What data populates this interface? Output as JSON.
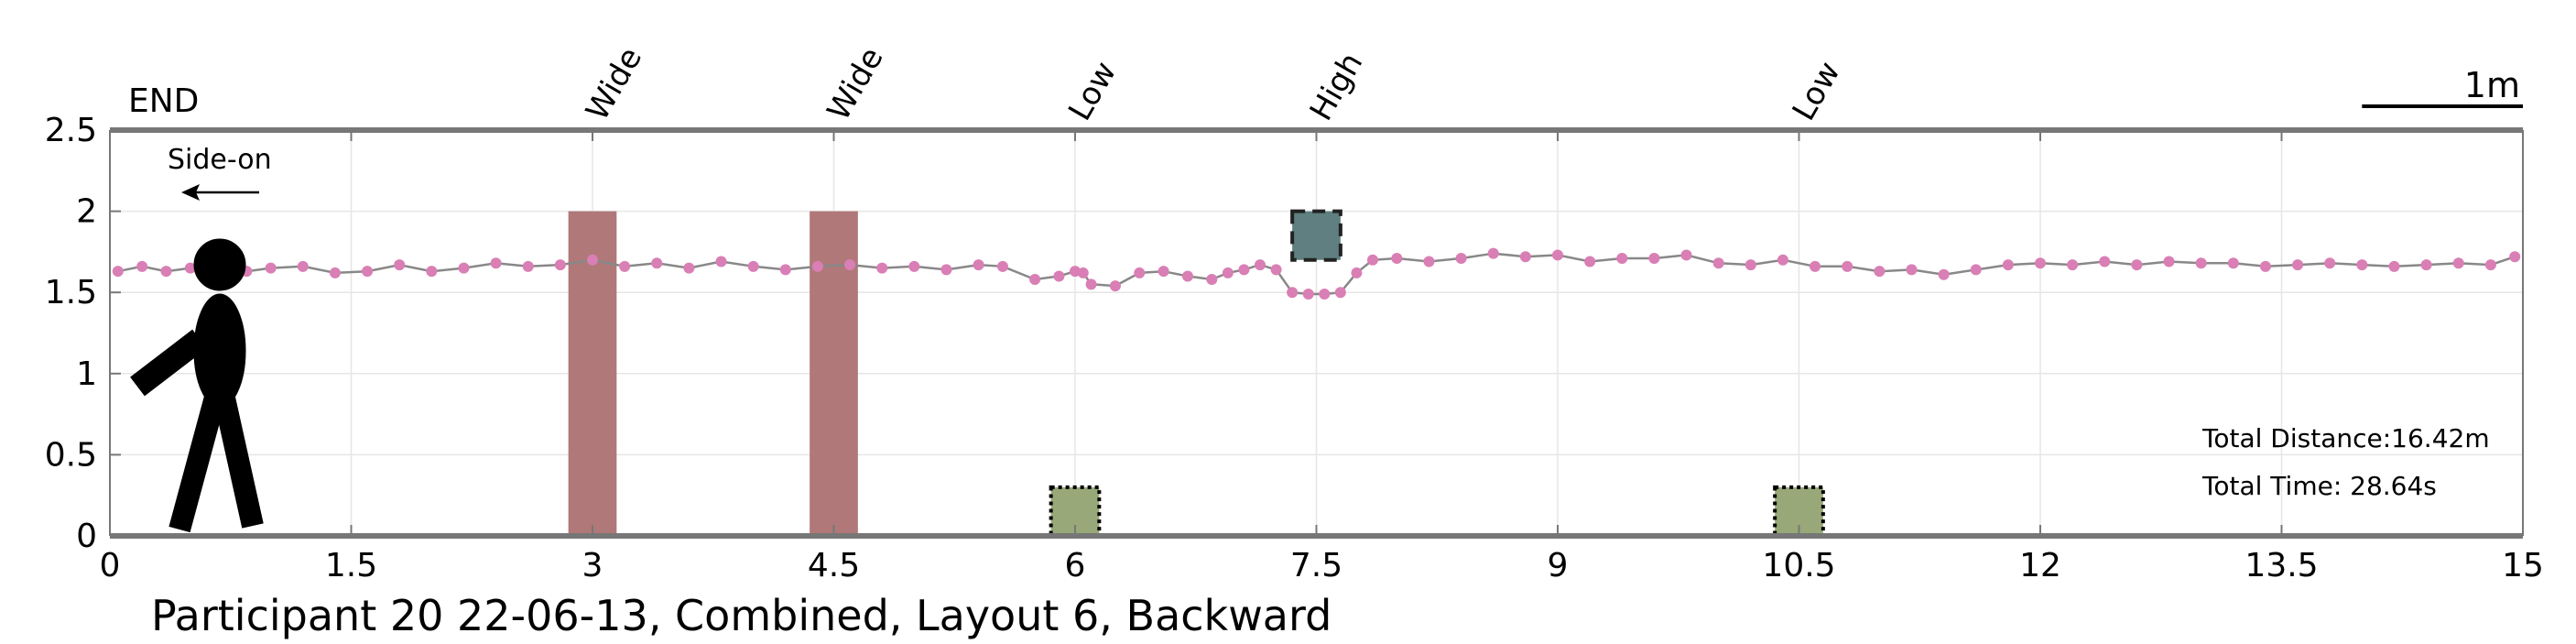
{
  "chart_data": {
    "type": "line",
    "title": "Participant 20 22-06-13, Combined, Layout 6, Backward",
    "end_label": "END",
    "direction_label": "Side-on",
    "scale_label": "1m",
    "xlim": [
      0,
      15
    ],
    "ylim": [
      0,
      2.5
    ],
    "x_ticks": [
      "0",
      "1.5",
      "3",
      "4.5",
      "6",
      "7.5",
      "9",
      "10.5",
      "12",
      "13.5",
      "15"
    ],
    "y_ticks": [
      "0",
      "0.5",
      "1",
      "1.5",
      "2",
      "2.5"
    ],
    "grid": true,
    "stats": {
      "distance": "Total Distance:16.42m",
      "time": "Total Time: 28.64s"
    },
    "obstacles": [
      {
        "label": "Wide",
        "kind": "wide",
        "x_start": 2.85,
        "x_end": 3.15,
        "y_bottom": 0,
        "y_top": 2.0
      },
      {
        "label": "Wide",
        "kind": "wide",
        "x_start": 4.35,
        "x_end": 4.65,
        "y_bottom": 0,
        "y_top": 2.0
      },
      {
        "label": "Low",
        "kind": "low",
        "x_start": 5.85,
        "x_end": 6.15,
        "y_bottom": 0,
        "y_top": 0.3
      },
      {
        "label": "High",
        "kind": "high",
        "x_start": 7.35,
        "x_end": 7.65,
        "y_bottom": 1.7,
        "y_top": 2.0
      },
      {
        "label": "Low",
        "kind": "low",
        "x_start": 10.35,
        "x_end": 10.65,
        "y_bottom": 0,
        "y_top": 0.3
      }
    ],
    "trajectory": {
      "x": [
        0.05,
        0.2,
        0.35,
        0.5,
        0.7,
        0.85,
        1.0,
        1.2,
        1.4,
        1.6,
        1.8,
        2.0,
        2.2,
        2.4,
        2.6,
        2.8,
        3.0,
        3.2,
        3.4,
        3.6,
        3.8,
        4.0,
        4.2,
        4.4,
        4.6,
        4.8,
        5.0,
        5.2,
        5.4,
        5.55,
        5.75,
        5.9,
        6.0,
        6.05,
        6.1,
        6.25,
        6.4,
        6.55,
        6.7,
        6.85,
        6.95,
        7.05,
        7.15,
        7.25,
        7.35,
        7.45,
        7.55,
        7.65,
        7.75,
        7.85,
        8.0,
        8.2,
        8.4,
        8.6,
        8.8,
        9.0,
        9.2,
        9.4,
        9.6,
        9.8,
        10.0,
        10.2,
        10.4,
        10.6,
        10.8,
        11.0,
        11.2,
        11.4,
        11.6,
        11.8,
        12.0,
        12.2,
        12.4,
        12.6,
        12.8,
        13.0,
        13.2,
        13.4,
        13.6,
        13.8,
        14.0,
        14.2,
        14.4,
        14.6,
        14.8,
        14.95
      ],
      "y": [
        1.63,
        1.66,
        1.63,
        1.65,
        1.64,
        1.63,
        1.65,
        1.66,
        1.62,
        1.63,
        1.67,
        1.63,
        1.65,
        1.68,
        1.66,
        1.67,
        1.7,
        1.66,
        1.68,
        1.65,
        1.69,
        1.66,
        1.64,
        1.66,
        1.67,
        1.65,
        1.66,
        1.64,
        1.67,
        1.66,
        1.58,
        1.6,
        1.63,
        1.62,
        1.55,
        1.54,
        1.62,
        1.63,
        1.6,
        1.58,
        1.62,
        1.64,
        1.67,
        1.64,
        1.5,
        1.49,
        1.49,
        1.5,
        1.62,
        1.7,
        1.71,
        1.69,
        1.71,
        1.74,
        1.72,
        1.73,
        1.69,
        1.71,
        1.71,
        1.73,
        1.68,
        1.67,
        1.7,
        1.66,
        1.66,
        1.63,
        1.64,
        1.61,
        1.64,
        1.67,
        1.68,
        1.67,
        1.69,
        1.67,
        1.69,
        1.68,
        1.68,
        1.66,
        1.67,
        1.68,
        1.67,
        1.66,
        1.67,
        1.68,
        1.67,
        1.72
      ]
    },
    "colors": {
      "line": "#888888",
      "point": "#d97fb5",
      "wide": "#b07878",
      "low": "#98a878",
      "high": "#5f7f80",
      "axis": "#777777"
    }
  }
}
